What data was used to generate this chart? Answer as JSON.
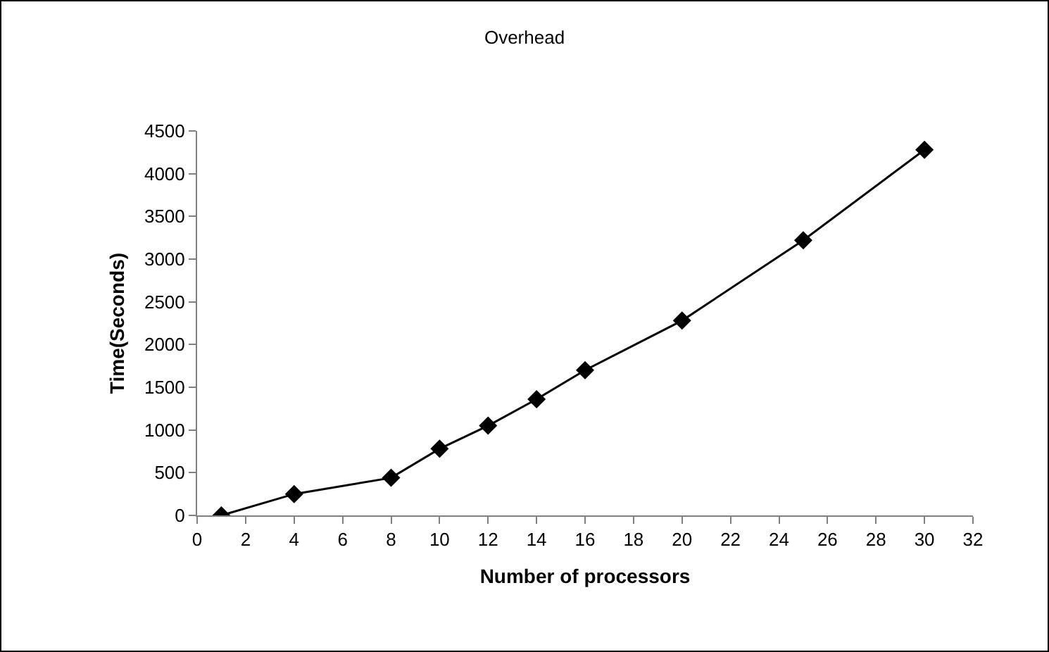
{
  "chart_data": {
    "type": "line",
    "title": "Overhead",
    "xlabel": "Number of processors",
    "ylabel": "Time(Seconds)",
    "x": [
      1,
      4,
      8,
      10,
      12,
      14,
      16,
      20,
      25,
      30
    ],
    "series": [
      {
        "color": "#000000",
        "values": [
          0,
          250,
          440,
          780,
          1050,
          1360,
          1700,
          2280,
          3220,
          4280
        ]
      }
    ],
    "xlim": [
      0,
      32
    ],
    "xticks": [
      0,
      2,
      4,
      6,
      8,
      10,
      12,
      14,
      16,
      18,
      20,
      22,
      24,
      26,
      28,
      30,
      32
    ],
    "ylim": [
      0,
      4500
    ],
    "yticks": [
      0,
      500,
      1000,
      1500,
      2000,
      2500,
      3000,
      3500,
      4000,
      4500
    ],
    "grid": false,
    "marker": "diamond",
    "line_style": "solid"
  }
}
